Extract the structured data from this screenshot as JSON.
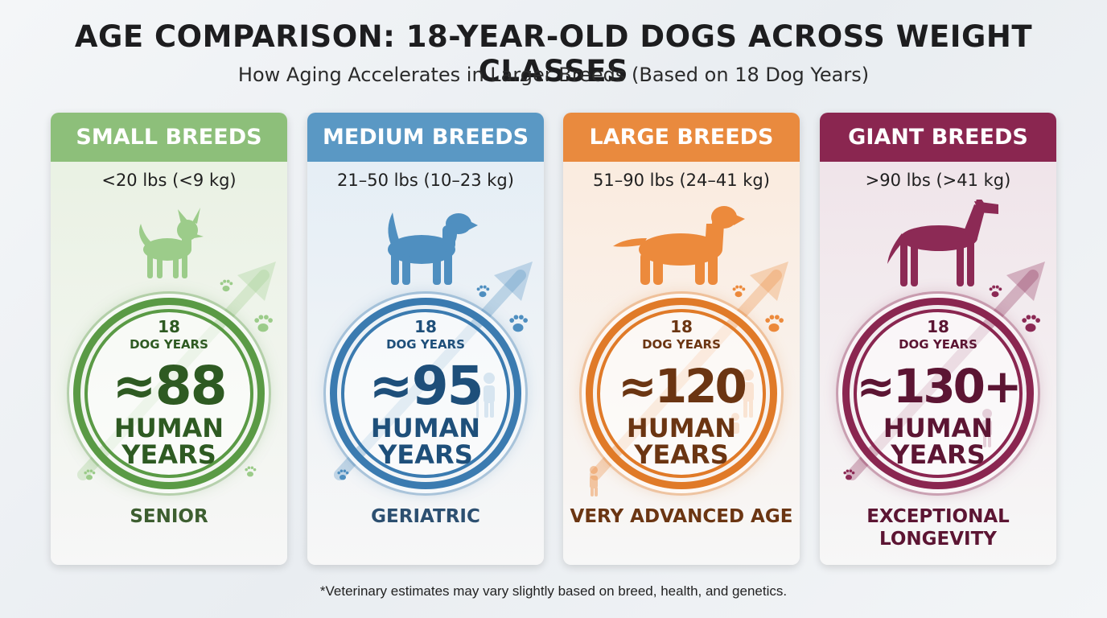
{
  "title": "AGE COMPARISON: 18-YEAR-OLD DOGS ACROSS WEIGHT CLASSES",
  "subtitle": "How Aging Accelerates in Larger Breeds (Based on 18 Dog Years)",
  "footnote": "*Veterinary estimates may vary slightly based on breed, health, and genetics.",
  "cards": [
    {
      "header": "SMALL BREEDS",
      "weight": "<20 lbs (<9 kg)",
      "dog_years": "18",
      "dog_years_label": "DOG YEARS",
      "human_value": "≈88",
      "human_line1": "HUMAN",
      "human_line2": "YEARS",
      "stage": "SENIOR",
      "stage_line2": "",
      "dog_icon": "chihuahua-icon",
      "colors": {
        "header": "#8dbf7a",
        "bg": "#e8f1e1",
        "dog": "#9ccc8a",
        "ring": "#5a9a45",
        "text": "#2e5a22",
        "stage": "#3d5e30"
      }
    },
    {
      "header": "MEDIUM BREEDS",
      "weight": "21–50 lbs (10–23 kg)",
      "dog_years": "18",
      "dog_years_label": "DOG YEARS",
      "human_value": "≈95",
      "human_line1": "HUMAN",
      "human_line2": "YEARS",
      "stage": "GERIATRIC",
      "stage_line2": "",
      "dog_icon": "beagle-icon",
      "colors": {
        "header": "#5a98c4",
        "bg": "#e3edf5",
        "dog": "#4f8fc0",
        "ring": "#3b7bb0",
        "text": "#1e4f7a",
        "stage": "#2c4f70"
      }
    },
    {
      "header": "LARGE BREEDS",
      "weight": "51–90 lbs (24–41 kg)",
      "dog_years": "18",
      "dog_years_label": "DOG YEARS",
      "human_value": "≈120",
      "human_line1": "HUMAN",
      "human_line2": "YEARS",
      "stage": "VERY ADVANCED AGE",
      "stage_line2": "",
      "dog_icon": "golden-retriever-icon",
      "colors": {
        "header": "#e98a3e",
        "bg": "#fbeadc",
        "dog": "#ec8a3c",
        "ring": "#e07a28",
        "text": "#6b3512",
        "stage": "#6b3512"
      }
    },
    {
      "header": "GIANT BREEDS",
      "weight": ">90 lbs (>41 kg)",
      "dog_years": "18",
      "dog_years_label": "DOG YEARS",
      "human_value": "≈130+",
      "human_line1": "HUMAN",
      "human_line2": "YEARS",
      "stage": "EXCEPTIONAL",
      "stage_line2": "LONGEVITY",
      "dog_icon": "great-dane-icon",
      "colors": {
        "header": "#8a2650",
        "bg": "#efe2e8",
        "dog": "#8c2a55",
        "ring": "#8a2650",
        "text": "#5c1533",
        "stage": "#5c1533"
      }
    }
  ]
}
